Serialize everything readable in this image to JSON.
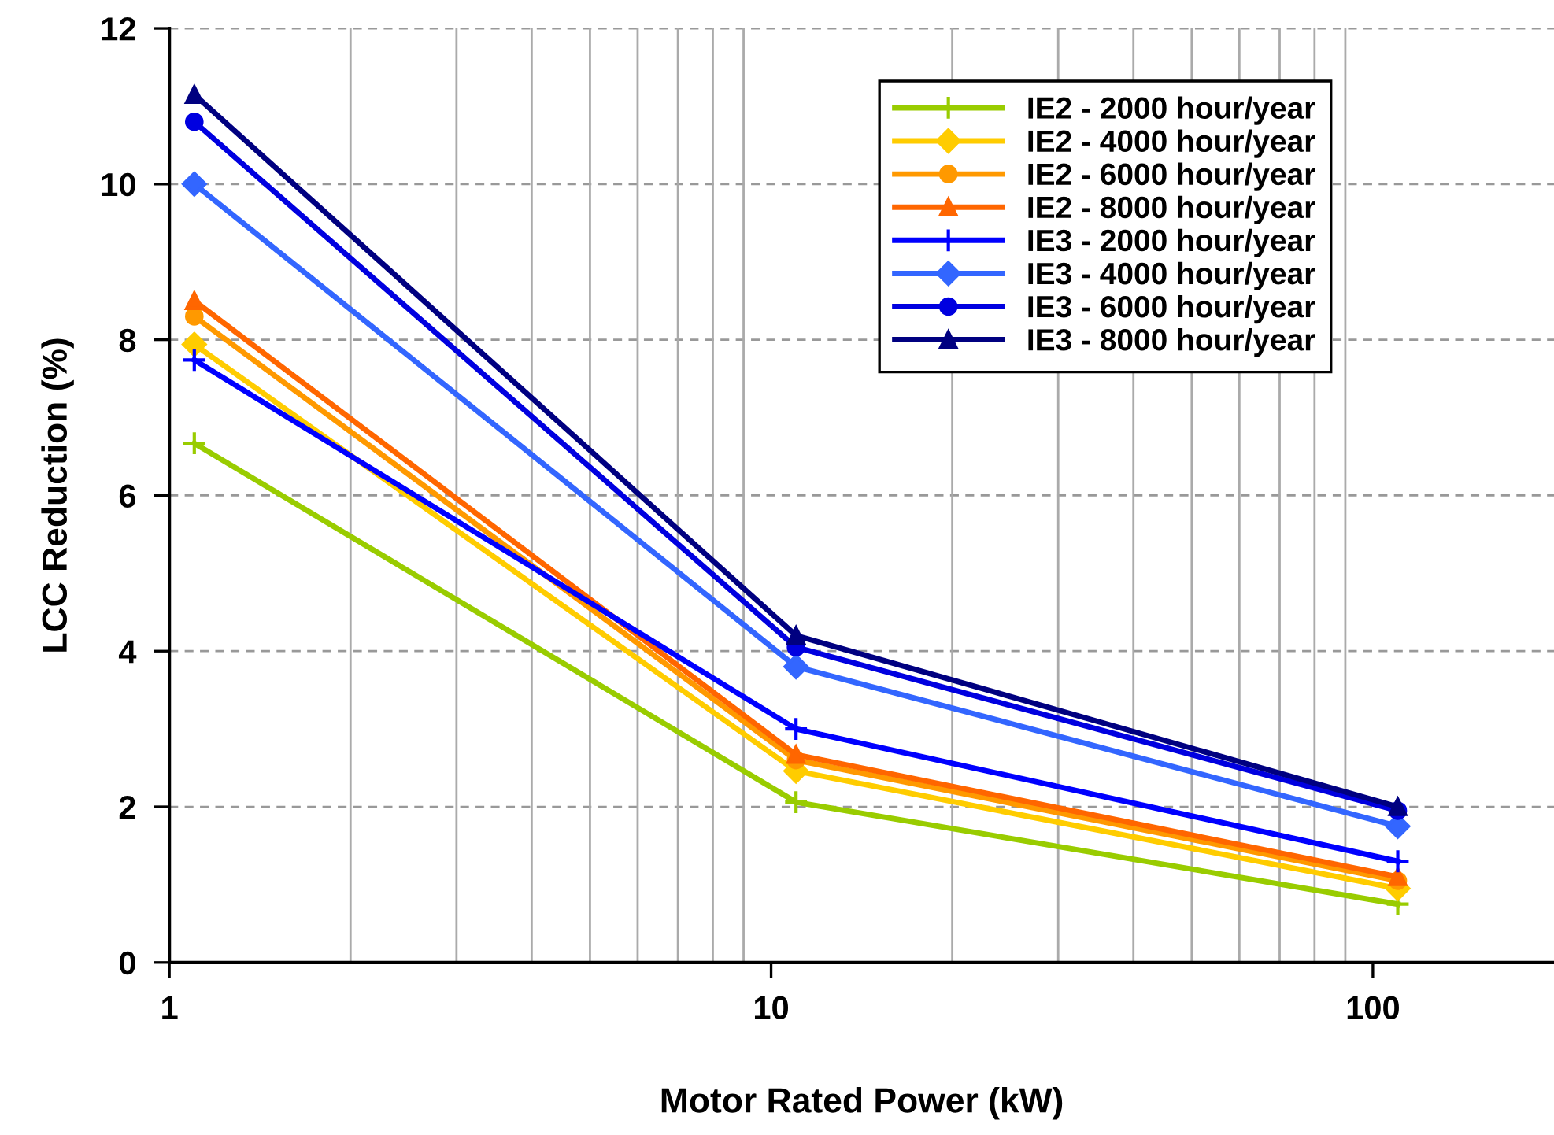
{
  "chart_data": {
    "type": "line",
    "xlabel": "Motor Rated Power (kW)",
    "ylabel": "LCC Reduction (%)",
    "log": "x",
    "xlim": [
      1,
      200
    ],
    "xticks": [
      1,
      10,
      100
    ],
    "ylim": [
      0,
      12
    ],
    "yticks": [
      0,
      2,
      4,
      6,
      8,
      10,
      12
    ],
    "grid": true,
    "legend": "top right",
    "x": [
      1.1,
      11,
      110
    ],
    "series": [
      {
        "name": "IE2 - 2000 hour/year",
        "color": "#99cc00",
        "marker": "cross",
        "values": [
          6.67,
          2.06,
          0.75
        ]
      },
      {
        "name": "IE2 - 4000 hour/year",
        "color": "#ffcc00",
        "marker": "diamond",
        "values": [
          7.94,
          2.46,
          0.95
        ]
      },
      {
        "name": "IE2 - 6000 hour/year",
        "color": "#ff9900",
        "marker": "circle",
        "values": [
          8.3,
          2.6,
          1.05
        ]
      },
      {
        "name": "IE2 - 8000 hour/year",
        "color": "#ff6600",
        "marker": "triangle",
        "values": [
          8.5,
          2.67,
          1.1
        ]
      },
      {
        "name": "IE3 - 2000 hour/year",
        "color": "#0000ff",
        "marker": "cross",
        "values": [
          7.74,
          3.0,
          1.3
        ]
      },
      {
        "name": "IE3 - 4000 hour/year",
        "color": "#3366ff",
        "marker": "diamond",
        "values": [
          10.0,
          3.8,
          1.75
        ]
      },
      {
        "name": "IE3 - 6000 hour/year",
        "color": "#0000e0",
        "marker": "circle",
        "values": [
          10.8,
          4.05,
          1.95
        ]
      },
      {
        "name": "IE3 - 8000 hour/year",
        "color": "#000080",
        "marker": "triangle",
        "values": [
          11.15,
          4.2,
          2.0
        ]
      }
    ]
  }
}
